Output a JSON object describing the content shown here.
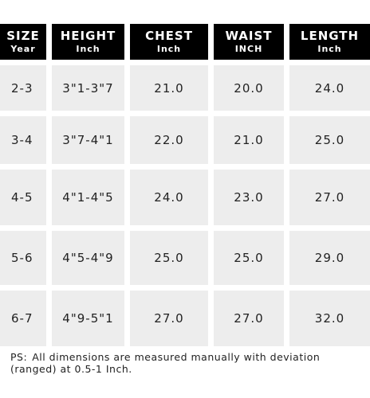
{
  "table": {
    "headers": [
      {
        "title": "SIZE",
        "unit": "Year"
      },
      {
        "title": "HEIGHT",
        "unit": "Inch"
      },
      {
        "title": "CHEST",
        "unit": "Inch"
      },
      {
        "title": "WAIST",
        "unit": "INCH"
      },
      {
        "title": "LENGTH",
        "unit": "Inch"
      }
    ],
    "rows": [
      [
        "2-3",
        "3\"1-3\"7",
        "21.0",
        "20.0",
        "24.0"
      ],
      [
        "3-4",
        "3\"7-4\"1",
        "22.0",
        "21.0",
        "25.0"
      ],
      [
        "4-5",
        "4\"1-4\"5",
        "24.0",
        "23.0",
        "27.0"
      ],
      [
        "5-6",
        "4\"5-4\"9",
        "25.0",
        "25.0",
        "29.0"
      ],
      [
        "6-7",
        "4\"9-5\"1",
        "27.0",
        "27.0",
        "32.0"
      ]
    ]
  },
  "note": {
    "prefix": "PS:",
    "text": "All dimensions are measured manually with deviation (ranged) at 0.5-1 Inch."
  }
}
